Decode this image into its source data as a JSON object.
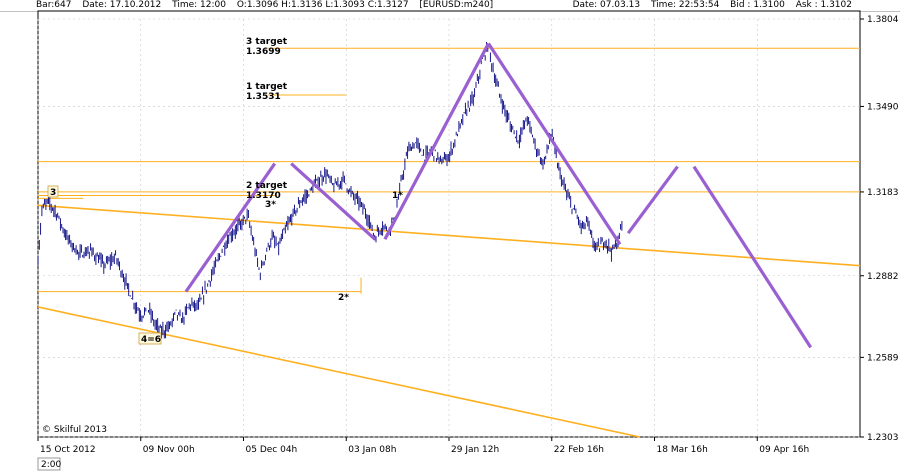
{
  "header": {
    "bar": "Bar:647",
    "date": "Date: 17.10.2012",
    "time": "Time:  12:00",
    "ohlc": "O:1.3096 H:1.3136 L:1.3093 C:1.3127",
    "symbol": "[EURUSD:m240]",
    "cur_date": "Date: 07.03.13",
    "cur_time": "Time: 22:53:54",
    "bid": "Bid : 1.3100",
    "ask": "Ask : 1.3102"
  },
  "copyright": "© Skilful 2013",
  "corner_label": "2:00",
  "colors": {
    "price": "#00007f",
    "level": "#ffb020",
    "projection": "#9a5fd0",
    "grid": "#c8c8c8"
  },
  "chart_data": {
    "type": "line",
    "symbol": "EURUSD",
    "timeframe": "m240",
    "ylim": [
      1.2303,
      1.3804
    ],
    "yticks": [
      1.3804,
      1.349,
      1.3183,
      1.2882,
      1.2589,
      1.2303
    ],
    "ytick_labels": [
      "1.3804",
      "1.3490",
      "1.3183",
      "1.2882",
      "1.2589",
      "1.2303"
    ],
    "xtick_labels": [
      "15 Oct 2012",
      "09 Nov 00h",
      "05 Dec 04h",
      "03 Jan 08h",
      "29 Jan 12h",
      "22 Feb 16h",
      "18 Mar 16h",
      "09 Apr 16h"
    ],
    "x_index_range": [
      0,
      1000
    ],
    "xtick_index": [
      0,
      125,
      250,
      375,
      500,
      625,
      750,
      875
    ],
    "price_path": [
      {
        "x": 0,
        "y": 1.294
      },
      {
        "x": 5,
        "y": 1.312
      },
      {
        "x": 12,
        "y": 1.315
      },
      {
        "x": 22,
        "y": 1.311
      },
      {
        "x": 35,
        "y": 1.302
      },
      {
        "x": 50,
        "y": 1.296
      },
      {
        "x": 65,
        "y": 1.297
      },
      {
        "x": 80,
        "y": 1.292
      },
      {
        "x": 95,
        "y": 1.295
      },
      {
        "x": 105,
        "y": 1.287
      },
      {
        "x": 115,
        "y": 1.28
      },
      {
        "x": 125,
        "y": 1.274
      },
      {
        "x": 135,
        "y": 1.276
      },
      {
        "x": 142,
        "y": 1.271
      },
      {
        "x": 150,
        "y": 1.268
      },
      {
        "x": 160,
        "y": 1.27
      },
      {
        "x": 168,
        "y": 1.275
      },
      {
        "x": 175,
        "y": 1.272
      },
      {
        "x": 185,
        "y": 1.278
      },
      {
        "x": 195,
        "y": 1.277
      },
      {
        "x": 205,
        "y": 1.284
      },
      {
        "x": 215,
        "y": 1.291
      },
      {
        "x": 225,
        "y": 1.298
      },
      {
        "x": 235,
        "y": 1.303
      },
      {
        "x": 245,
        "y": 1.306
      },
      {
        "x": 255,
        "y": 1.31
      },
      {
        "x": 262,
        "y": 1.3
      },
      {
        "x": 270,
        "y": 1.289
      },
      {
        "x": 278,
        "y": 1.297
      },
      {
        "x": 285,
        "y": 1.302
      },
      {
        "x": 292,
        "y": 1.298
      },
      {
        "x": 300,
        "y": 1.304
      },
      {
        "x": 310,
        "y": 1.31
      },
      {
        "x": 320,
        "y": 1.315
      },
      {
        "x": 330,
        "y": 1.318
      },
      {
        "x": 340,
        "y": 1.322
      },
      {
        "x": 350,
        "y": 1.325
      },
      {
        "x": 360,
        "y": 1.32
      },
      {
        "x": 372,
        "y": 1.323
      },
      {
        "x": 380,
        "y": 1.318
      },
      {
        "x": 390,
        "y": 1.315
      },
      {
        "x": 400,
        "y": 1.31
      },
      {
        "x": 410,
        "y": 1.302
      },
      {
        "x": 418,
        "y": 1.306
      },
      {
        "x": 428,
        "y": 1.305
      },
      {
        "x": 435,
        "y": 1.31
      },
      {
        "x": 442,
        "y": 1.322
      },
      {
        "x": 450,
        "y": 1.333
      },
      {
        "x": 460,
        "y": 1.336
      },
      {
        "x": 470,
        "y": 1.331
      },
      {
        "x": 480,
        "y": 1.333
      },
      {
        "x": 490,
        "y": 1.329
      },
      {
        "x": 500,
        "y": 1.331
      },
      {
        "x": 510,
        "y": 1.339
      },
      {
        "x": 520,
        "y": 1.347
      },
      {
        "x": 530,
        "y": 1.352
      },
      {
        "x": 540,
        "y": 1.365
      },
      {
        "x": 548,
        "y": 1.371
      },
      {
        "x": 555,
        "y": 1.36
      },
      {
        "x": 565,
        "y": 1.35
      },
      {
        "x": 575,
        "y": 1.342
      },
      {
        "x": 585,
        "y": 1.337
      },
      {
        "x": 595,
        "y": 1.345
      },
      {
        "x": 605,
        "y": 1.335
      },
      {
        "x": 615,
        "y": 1.328
      },
      {
        "x": 625,
        "y": 1.34
      },
      {
        "x": 632,
        "y": 1.328
      },
      {
        "x": 640,
        "y": 1.32
      },
      {
        "x": 648,
        "y": 1.314
      },
      {
        "x": 655,
        "y": 1.31
      },
      {
        "x": 662,
        "y": 1.305
      },
      {
        "x": 668,
        "y": 1.308
      },
      {
        "x": 675,
        "y": 1.3
      },
      {
        "x": 682,
        "y": 1.298
      },
      {
        "x": 690,
        "y": 1.301
      },
      {
        "x": 698,
        "y": 1.297
      },
      {
        "x": 705,
        "y": 1.3
      },
      {
        "x": 712,
        "y": 1.308
      }
    ],
    "level_lines": [
      {
        "y": 1.3699,
        "x0": 280,
        "x1": 1000
      },
      {
        "y": 1.3531,
        "x0": 280,
        "x1": 375
      },
      {
        "y": 1.3292,
        "x0": 0,
        "x1": 1000
      },
      {
        "y": 1.3183,
        "x0": 0,
        "x1": 1000
      },
      {
        "y": 1.317,
        "x0": 0,
        "x1": 290
      },
      {
        "y": 1.2825,
        "x0": 0,
        "x1": 393
      },
      {
        "y": 1.316,
        "x0": 0,
        "x1": 55
      }
    ],
    "trend_lines": [
      {
        "x0": 0,
        "y0": 1.3135,
        "x1": 1000,
        "y1": 1.2918
      },
      {
        "x0": 0,
        "y0": 1.277,
        "x1": 732,
        "y1": 1.2303
      }
    ],
    "projection_lines": [
      {
        "x0": 180,
        "y0": 1.2825,
        "x1": 288,
        "y1": 1.3285
      },
      {
        "x0": 308,
        "y0": 1.3285,
        "x1": 410,
        "y1": 1.3013
      },
      {
        "x0": 422,
        "y0": 1.3013,
        "x1": 548,
        "y1": 1.3716
      },
      {
        "x0": 548,
        "y0": 1.3716,
        "x1": 708,
        "y1": 1.2995
      },
      {
        "x0": 718,
        "y0": 1.3035,
        "x1": 778,
        "y1": 1.3274
      },
      {
        "x0": 798,
        "y0": 1.3274,
        "x1": 940,
        "y1": 1.2625
      }
    ],
    "annotations": {
      "target3_label": "3 target",
      "target3_value": "1.3699",
      "target1_label": "1 target",
      "target1_value": "1.3531",
      "target2_label": "2 target",
      "target2_value": "1.3170",
      "mark_3": "3",
      "mark_3s": "3*",
      "mark_1s": "1*",
      "mark_2s": "2*",
      "mark_46": "4=6"
    }
  }
}
